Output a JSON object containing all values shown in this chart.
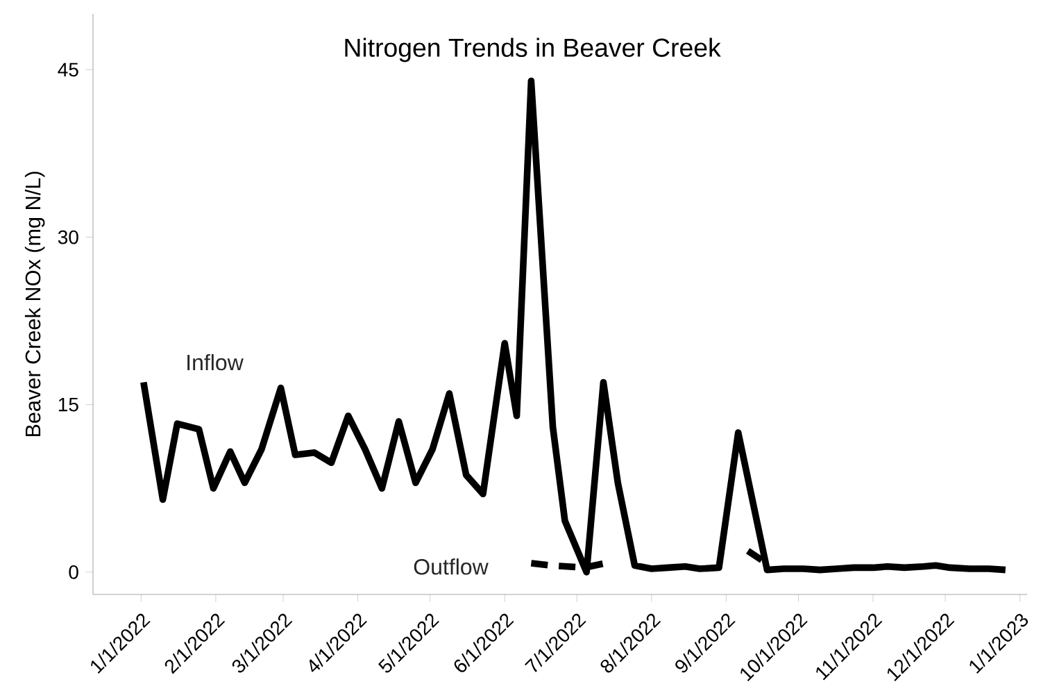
{
  "chart_data": {
    "type": "line",
    "title": "Nitrogen Trends in Beaver Creek",
    "ylabel": "Beaver Creek NOx (mg N/L)",
    "xlim": [
      "2021-12-12",
      "2023-01-04"
    ],
    "ylim": [
      -2,
      50
    ],
    "yticks": [
      0,
      15,
      30,
      45
    ],
    "xticks": [
      {
        "value": "2022-01-01",
        "label": "1/1/2022"
      },
      {
        "value": "2022-02-01",
        "label": "2/1/2022"
      },
      {
        "value": "2022-03-01",
        "label": "3/1/2022"
      },
      {
        "value": "2022-04-01",
        "label": "4/1/2022"
      },
      {
        "value": "2022-05-01",
        "label": "5/1/2022"
      },
      {
        "value": "2022-06-01",
        "label": "6/1/2022"
      },
      {
        "value": "2022-07-01",
        "label": "7/1/2022"
      },
      {
        "value": "2022-08-01",
        "label": "8/1/2022"
      },
      {
        "value": "2022-09-01",
        "label": "9/1/2022"
      },
      {
        "value": "2022-10-01",
        "label": "10/1/2022"
      },
      {
        "value": "2022-11-01",
        "label": "11/1/2022"
      },
      {
        "value": "2022-12-01",
        "label": "12/1/2022"
      },
      {
        "value": "2023-01-01",
        "label": "1/1/2023"
      }
    ],
    "grid": false,
    "series": [
      {
        "color": "#000000",
        "line_style": "solid",
        "x": [
          "2022-01-02",
          "2022-01-10",
          "2022-01-16",
          "2022-01-25",
          "2022-01-31",
          "2022-02-07",
          "2022-02-13",
          "2022-02-20",
          "2022-02-28",
          "2022-03-06",
          "2022-03-14",
          "2022-03-21",
          "2022-03-28",
          "2022-04-04",
          "2022-04-11",
          "2022-04-18",
          "2022-04-25",
          "2022-05-02",
          "2022-05-09",
          "2022-05-16",
          "2022-05-23",
          "2022-06-01",
          "2022-06-06",
          "2022-06-12",
          "2022-06-21",
          "2022-06-26",
          "2022-07-05",
          "2022-07-12",
          "2022-07-18",
          "2022-07-25",
          "2022-08-01",
          "2022-08-08",
          "2022-08-15",
          "2022-08-21",
          "2022-08-29",
          "2022-09-06",
          "2022-09-18",
          "2022-09-25",
          "2022-10-03",
          "2022-10-10",
          "2022-10-17",
          "2022-10-24",
          "2022-11-01",
          "2022-11-07",
          "2022-11-14",
          "2022-11-22",
          "2022-11-27",
          "2022-12-03",
          "2022-12-11",
          "2022-12-19",
          "2022-12-26"
        ],
        "values": [
          17,
          6.5,
          13.3,
          12.8,
          7.5,
          10.8,
          8,
          11,
          16.5,
          10.5,
          10.7,
          9.8,
          14,
          11,
          7.5,
          13.5,
          8,
          11,
          16,
          8.7,
          7,
          20.5,
          14,
          44,
          13,
          4.6,
          0,
          17,
          8,
          0.6,
          0.3,
          0.4,
          0.5,
          0.3,
          0.4,
          12.5,
          0.2,
          0.3,
          0.3,
          0.2,
          0.3,
          0.4,
          0.4,
          0.5,
          0.4,
          0.5,
          0.6,
          0.4,
          0.3,
          0.3,
          0.2
        ]
      },
      {
        "color": "#000000",
        "line_style": "dashed",
        "x": [
          "2022-06-12",
          "2022-06-20",
          "2022-07-04",
          "2022-07-15",
          "2022-08-08",
          "2022-09-10",
          "2022-09-17"
        ],
        "values": [
          0.8,
          0.6,
          0.4,
          0.9,
          null,
          1.9,
          0.9
        ]
      }
    ],
    "annotations": [
      "Inflow",
      "Outflow"
    ]
  }
}
